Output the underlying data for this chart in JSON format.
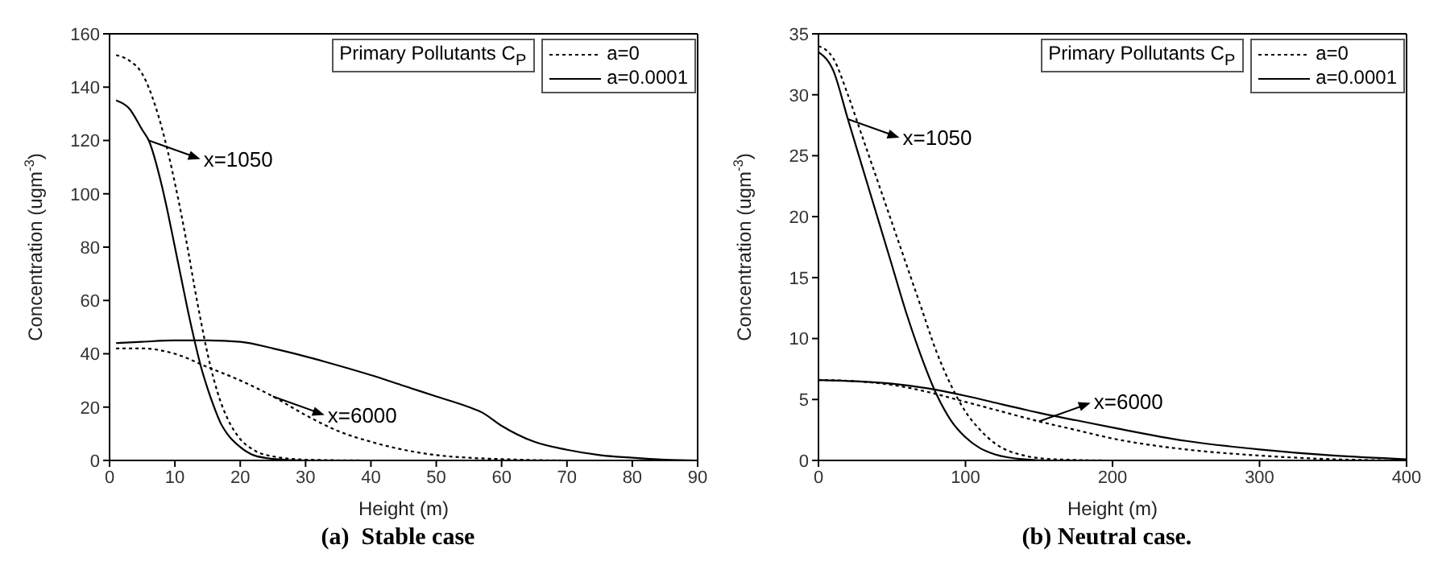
{
  "chart_data": [
    {
      "type": "line",
      "title": "(a)  Stable case",
      "xlabel": "Height (m)",
      "ylabel": "Concentration (ugm$^{-3}$)",
      "legend_title": "Primary Pollutants C$_{P}$",
      "legend": "top right",
      "grid": false,
      "marker": "none",
      "xlim": [
        0,
        90
      ],
      "xticks": [
        0,
        10,
        20,
        30,
        40,
        50,
        60,
        70,
        80,
        90
      ],
      "ylim": [
        0,
        160
      ],
      "yticks": [
        0,
        20,
        40,
        60,
        80,
        100,
        120,
        140,
        160
      ],
      "annotations": [
        {
          "text": "x=1050",
          "x": 6,
          "y": 120
        },
        {
          "text": "x=6000",
          "x": 25,
          "y": 24
        }
      ],
      "series": [
        {
          "name": "a=0",
          "color": "#000000",
          "line_style": "dotted",
          "x": [
            1,
            3,
            5,
            7,
            9,
            10,
            11,
            12,
            13,
            14,
            15,
            16,
            17,
            18,
            20,
            22,
            25,
            30,
            40,
            90
          ],
          "values": [
            152,
            150,
            145,
            133,
            115,
            104,
            92,
            79,
            65,
            52,
            40,
            30,
            22,
            16,
            8,
            4,
            1.5,
            0.3,
            0,
            0
          ]
        },
        {
          "name": "a=0.0001",
          "color": "#000000",
          "line_style": "solid",
          "x": [
            1,
            3,
            5,
            6,
            8,
            9,
            10,
            11,
            12,
            13,
            14,
            15,
            16,
            17,
            18,
            20,
            22,
            25,
            30,
            90
          ],
          "values": [
            135,
            132,
            124,
            120,
            103,
            92,
            80,
            68,
            56,
            45,
            35,
            27,
            20,
            14,
            10,
            5,
            2,
            0.6,
            0,
            0
          ]
        },
        {
          "color": "#000000",
          "line_style": "dotted",
          "x": [
            1,
            5,
            10,
            15,
            20,
            25,
            30,
            35,
            40,
            45,
            50,
            55,
            60,
            70,
            90
          ],
          "values": [
            42,
            42,
            40,
            35,
            30,
            24,
            17,
            11,
            7,
            4,
            2,
            1,
            0.5,
            0,
            0
          ]
        },
        {
          "color": "#000000",
          "line_style": "solid",
          "x": [
            1,
            5,
            10,
            15,
            20,
            25,
            30,
            33,
            40,
            45,
            50,
            55,
            57,
            60,
            65,
            70,
            75,
            80,
            85,
            90
          ],
          "values": [
            44,
            44.5,
            45,
            45,
            44.5,
            42,
            39,
            37,
            32,
            28,
            24,
            20,
            18,
            13,
            7,
            4,
            2,
            1,
            0.3,
            0
          ]
        }
      ]
    },
    {
      "type": "line",
      "title": "(b) Neutral case.",
      "xlabel": "Height (m)",
      "ylabel": "Concentration (ugm$^{-3}$)",
      "legend_title": "Primary Pollutants C$_{P}$",
      "legend": "top right",
      "grid": false,
      "marker": "none",
      "xlim": [
        0,
        400
      ],
      "xticks": [
        0,
        100,
        200,
        300,
        400
      ],
      "ylim": [
        0,
        35
      ],
      "yticks": [
        0,
        5,
        10,
        15,
        20,
        25,
        30,
        35
      ],
      "annotations": [
        {
          "text": "x=1050",
          "x": 20,
          "y": 28
        },
        {
          "text": "x=6000",
          "x": 150,
          "y": 3.2
        }
      ],
      "series": [
        {
          "name": "a=0",
          "color": "#000000",
          "line_style": "dotted",
          "x": [
            0,
            10,
            20,
            30,
            40,
            50,
            60,
            70,
            80,
            90,
            100,
            110,
            120,
            140,
            160,
            200,
            400
          ],
          "values": [
            34,
            33,
            30,
            26.5,
            23,
            19.5,
            16,
            12.5,
            9,
            6.2,
            4,
            2.5,
            1.4,
            0.4,
            0.1,
            0,
            0
          ]
        },
        {
          "name": "a=0.0001",
          "color": "#000000",
          "line_style": "solid",
          "x": [
            0,
            10,
            20,
            30,
            40,
            50,
            60,
            70,
            80,
            90,
            100,
            110,
            120,
            140,
            160,
            400
          ],
          "values": [
            33.5,
            32,
            28,
            24,
            20,
            16,
            12,
            8.5,
            5.5,
            3.3,
            1.9,
            1,
            0.5,
            0.1,
            0,
            0
          ]
        },
        {
          "color": "#000000",
          "line_style": "dotted",
          "x": [
            0,
            25,
            50,
            75,
            100,
            125,
            150,
            175,
            200,
            250,
            300,
            350,
            400
          ],
          "values": [
            6.6,
            6.5,
            6.2,
            5.6,
            4.8,
            4,
            3.2,
            2.5,
            1.8,
            0.9,
            0.4,
            0.1,
            0
          ]
        },
        {
          "color": "#000000",
          "line_style": "solid",
          "x": [
            0,
            25,
            50,
            75,
            100,
            125,
            150,
            175,
            200,
            250,
            300,
            350,
            400
          ],
          "values": [
            6.6,
            6.5,
            6.3,
            5.9,
            5.3,
            4.6,
            3.9,
            3.3,
            2.7,
            1.6,
            0.9,
            0.4,
            0.1
          ]
        }
      ]
    }
  ]
}
